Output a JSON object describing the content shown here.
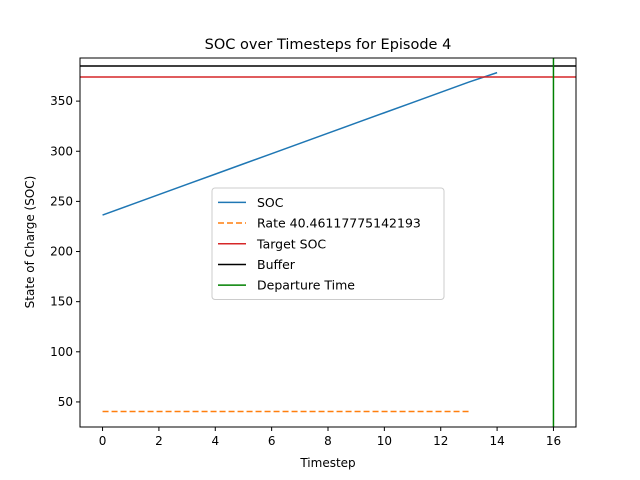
{
  "chart_data": {
    "type": "line",
    "title": "SOC over Timesteps for Episode 4",
    "xlabel": "Timestep",
    "ylabel": "State of Charge (SOC)",
    "xlim": [
      -0.8,
      16.8
    ],
    "ylim": [
      25,
      393
    ],
    "xticks": [
      0,
      2,
      4,
      6,
      8,
      10,
      12,
      14,
      16
    ],
    "yticks": [
      50,
      100,
      150,
      200,
      250,
      300,
      350
    ],
    "grid": false,
    "legend_position": "center",
    "series": [
      {
        "name": "SOC",
        "kind": "line",
        "color": "#1f77b4",
        "style": "solid",
        "x": [
          0,
          1,
          2,
          3,
          4,
          5,
          6,
          7,
          8,
          9,
          10,
          11,
          12,
          13,
          14
        ],
        "y": [
          236.4,
          246.6,
          256.8,
          267.0,
          277.2,
          287.4,
          297.6,
          307.8,
          318.0,
          328.2,
          338.4,
          348.6,
          358.8,
          369.0,
          378.4
        ]
      },
      {
        "name": "Rate 40.46117775142193",
        "kind": "line",
        "color": "#ff7f0e",
        "style": "dashed",
        "x": [
          0,
          1,
          2,
          3,
          4,
          5,
          6,
          7,
          8,
          9,
          10,
          11,
          12,
          13
        ],
        "y": [
          40.46,
          40.46,
          40.46,
          40.46,
          40.46,
          40.46,
          40.46,
          40.46,
          40.46,
          40.46,
          40.46,
          40.46,
          40.46,
          40.46
        ]
      },
      {
        "name": "Target SOC",
        "kind": "hline",
        "color": "#d62728",
        "style": "solid",
        "y": 374
      },
      {
        "name": "Buffer",
        "kind": "hline",
        "color": "#000000",
        "style": "solid",
        "y": 385
      },
      {
        "name": "Departure Time",
        "kind": "vline",
        "color": "#008000",
        "style": "solid",
        "x": 16
      }
    ]
  }
}
